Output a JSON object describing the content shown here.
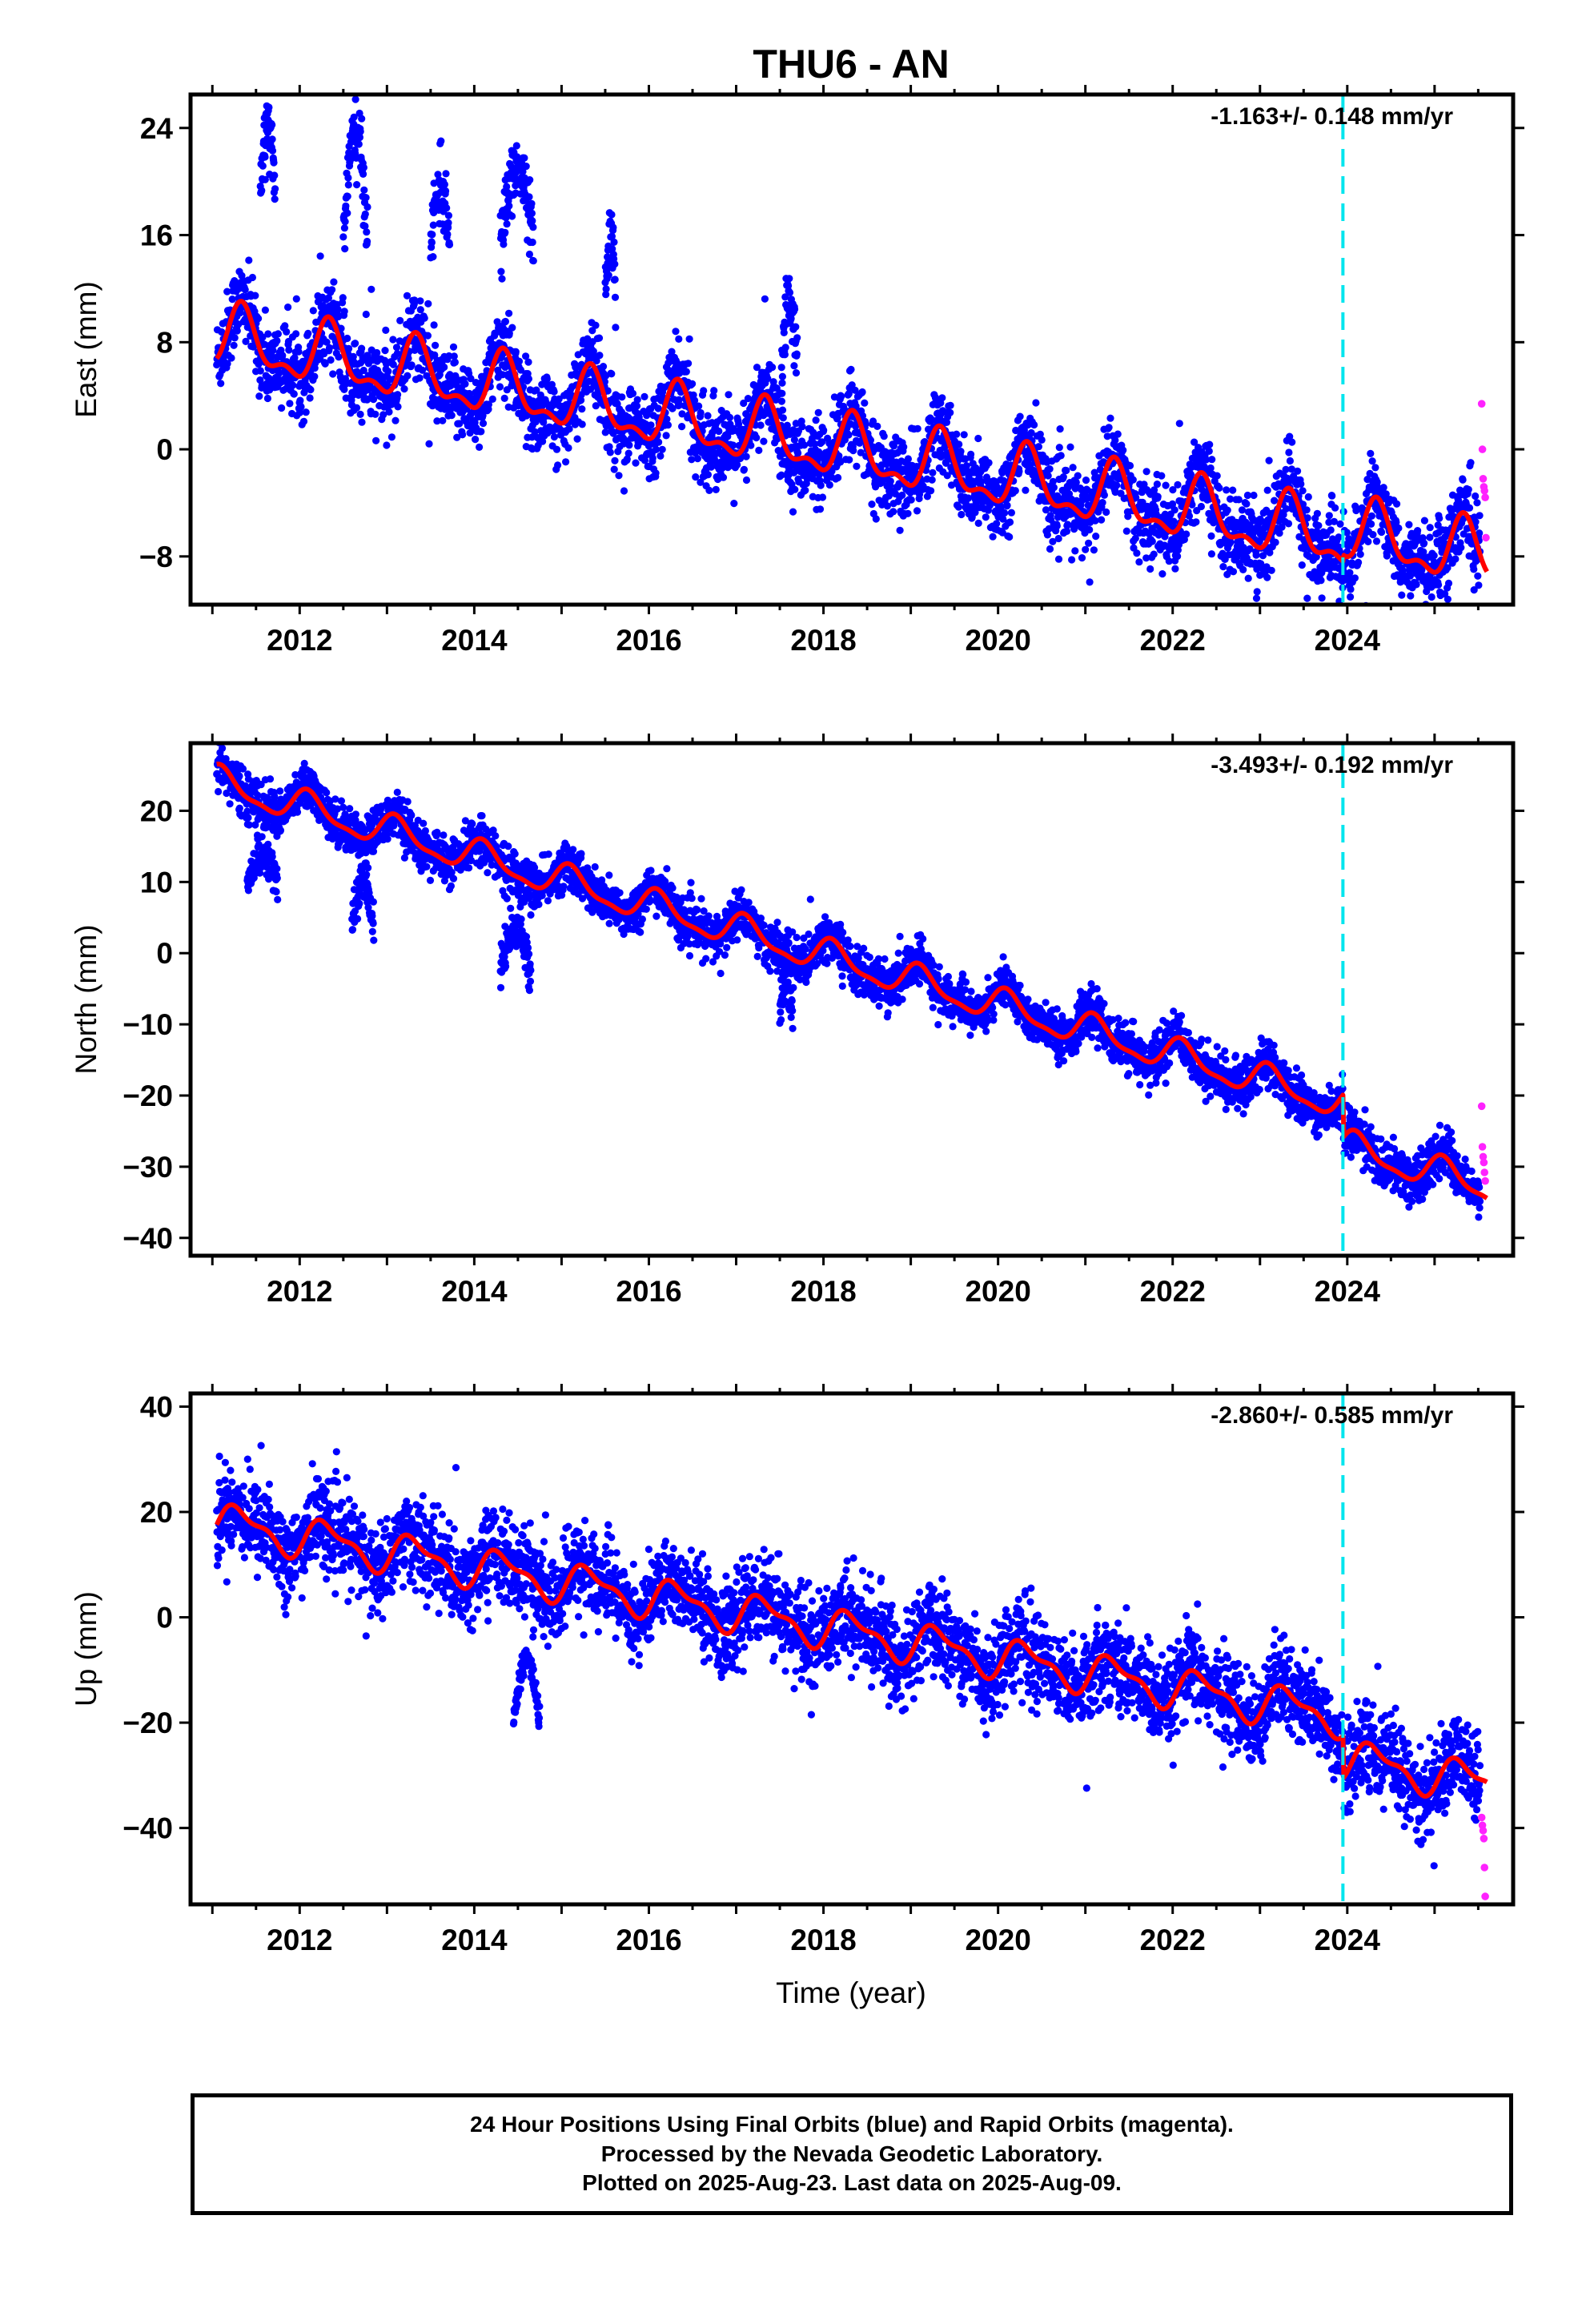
{
  "figure": {
    "title": "THU6 - AN",
    "xlabel": "Time (year)",
    "caption": [
      "24 Hour Positions Using Final Orbits (blue) and Rapid Orbits (magenta).",
      "Processed by the Nevada Geodetic Laboratory.",
      "Plotted on 2025-Aug-23. Last data on 2025-Aug-09."
    ]
  },
  "colors": {
    "final_orbits": "#0000ff",
    "rapid_orbits": "#ff22ff",
    "model_fit": "#ff0000",
    "equipment_change": "#00e5ee"
  },
  "chart_data": [
    {
      "type": "scatter",
      "component": "East",
      "ylabel": "East (mm)",
      "rate_label": "-1.163+/- 0.148 mm/yr",
      "rate": -1.163,
      "rate_sigma": 0.148,
      "xlim": [
        2010.75,
        2025.9
      ],
      "ylim": [
        -11.6,
        26.5
      ],
      "yticks": [
        -8,
        0,
        8,
        16,
        24
      ],
      "xticks": [
        2012,
        2014,
        2016,
        2018,
        2020,
        2022,
        2024
      ],
      "offset_epoch": 2023.95,
      "model": {
        "intercept": 8.3,
        "annual_sin": 1.75,
        "annual_cos": -1.18,
        "semiannual_sin": -0.8,
        "semiannual_cos": -0.58,
        "breaks": [
          {
            "epoch": 2023.95,
            "step": 0.5
          }
        ]
      },
      "noise_sd": 1.5,
      "anomalies": [
        {
          "t0": 2011.55,
          "t1": 2011.72,
          "y0": 19,
          "y1": 24.5
        },
        {
          "t0": 2012.5,
          "t1": 2012.78,
          "y0": 16,
          "y1": 23.5
        },
        {
          "t0": 2013.5,
          "t1": 2013.72,
          "y0": 15,
          "y1": 19.5
        },
        {
          "t0": 2014.3,
          "t1": 2014.68,
          "y0": 15,
          "y1": 21
        },
        {
          "t0": 2015.5,
          "t1": 2015.62,
          "y0": 11,
          "y1": 15.5
        },
        {
          "t0": 2017.52,
          "t1": 2017.7,
          "y0": 7,
          "y1": 11
        }
      ],
      "rapid": [
        3.4,
        0.0,
        -2.2,
        -2.8,
        -3.1,
        -3.6,
        -6.6
      ]
    },
    {
      "type": "scatter",
      "component": "North",
      "ylabel": "North (mm)",
      "rate_label": "-3.493+/- 0.192 mm/yr",
      "rate": -3.493,
      "rate_sigma": 0.192,
      "xlim": [
        2010.75,
        2025.9
      ],
      "ylim": [
        -42.5,
        29.5
      ],
      "yticks": [
        -40,
        -30,
        -20,
        -10,
        0,
        10,
        20
      ],
      "xticks": [
        2012,
        2014,
        2016,
        2018,
        2020,
        2022,
        2024
      ],
      "offset_epoch": 2023.95,
      "model": {
        "intercept": 23.9,
        "annual_sin": 1.35,
        "annual_cos": 1.64,
        "semiannual_sin": 0.5,
        "semiannual_cos": 0.47,
        "breaks": [
          {
            "epoch": 2023.95,
            "step": -6.0
          }
        ]
      },
      "noise_sd": 1.6,
      "anomalies": [
        {
          "t0": 2011.4,
          "t1": 2011.75,
          "y0": 9,
          "y1": 14
        },
        {
          "t0": 2012.6,
          "t1": 2012.85,
          "y0": 4,
          "y1": 10
        },
        {
          "t0": 2014.3,
          "t1": 2014.65,
          "y0": -3,
          "y1": 4
        },
        {
          "t0": 2017.5,
          "t1": 2017.65,
          "y0": -9,
          "y1": -5
        }
      ],
      "rapid": [
        -21.5,
        -27.2,
        -28.6,
        -29.4,
        -30.8,
        -32.0
      ]
    },
    {
      "type": "scatter",
      "component": "Up",
      "ylabel": "Up (mm)",
      "rate_label": "-2.860+/- 0.585 mm/yr",
      "rate": -2.86,
      "rate_sigma": 0.585,
      "xlim": [
        2010.75,
        2025.9
      ],
      "ylim": [
        -54.5,
        42.5
      ],
      "yticks": [
        -40,
        -20,
        0,
        20,
        40
      ],
      "xticks": [
        2012,
        2014,
        2016,
        2018,
        2020,
        2022,
        2024
      ],
      "offset_epoch": 2023.95,
      "model": {
        "intercept": 18.0,
        "annual_sin": 3.0,
        "annual_cos": -1.5,
        "semiannual_sin": 1.2,
        "semiannual_cos": -0.8,
        "breaks": [
          {
            "epoch": 2023.95,
            "step": -8.0
          }
        ]
      },
      "noise_sd": 4.2,
      "anomalies": [
        {
          "t0": 2014.45,
          "t1": 2014.75,
          "y0": -20,
          "y1": -8
        }
      ],
      "rapid": [
        -38.0,
        -39.5,
        -40.5,
        -42.0,
        -47.5,
        -53.0
      ]
    }
  ]
}
